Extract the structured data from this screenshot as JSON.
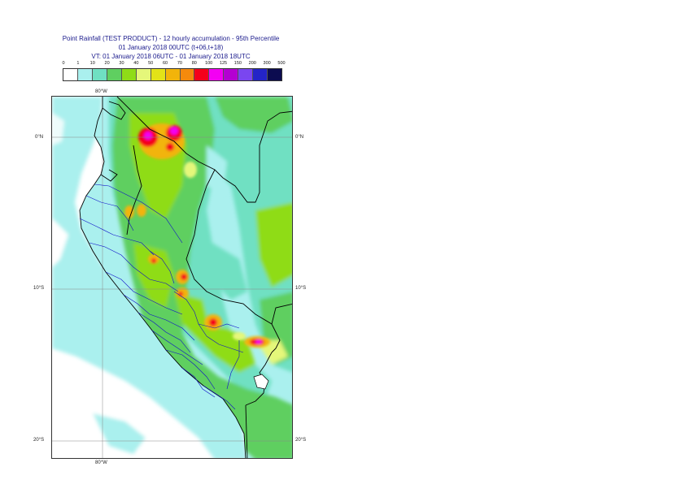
{
  "title": {
    "line1": "Point Rainfall (TEST PRODUCT) - 12 hourly accumulation - 95th Percentile",
    "line2": "01 January 2018 00UTC (t+06,t+18)",
    "line3": "VT: 01 January 2018 06UTC - 01 January 2018 18UTC"
  },
  "legend": {
    "ticks": [
      "0",
      "1",
      "10",
      "20",
      "30",
      "40",
      "50",
      "60",
      "70",
      "80",
      "100",
      "125",
      "150",
      "200",
      "300",
      "500"
    ],
    "colors": [
      "#ffffff",
      "#aaf0ee",
      "#6fe0c2",
      "#5fcf60",
      "#8fdc18",
      "#e5f77a",
      "#e3e318",
      "#f2b40a",
      "#f58a0c",
      "#f5001b",
      "#f300f3",
      "#b400d2",
      "#7a46f0",
      "#2424c8",
      "#0c0c50"
    ]
  },
  "map": {
    "lon_top": "80°W",
    "lon_bottom": "80°W",
    "lat_left": [
      "0°N",
      "10°S",
      "20°S"
    ],
    "lat_right": [
      "0°N",
      "10°S",
      "20°S"
    ],
    "colors": {
      "ocean_base": "#ffffff",
      "light_cyan": "#aaf0ee",
      "teal": "#6fe0c2",
      "green": "#5fcf60",
      "lime": "#8fdc18",
      "yellow": "#e5f77a",
      "orange": "#f2b40a",
      "red": "#f5001b",
      "magenta": "#f300f3",
      "border_black": "#000000",
      "admin_blue": "#1010c8"
    }
  }
}
